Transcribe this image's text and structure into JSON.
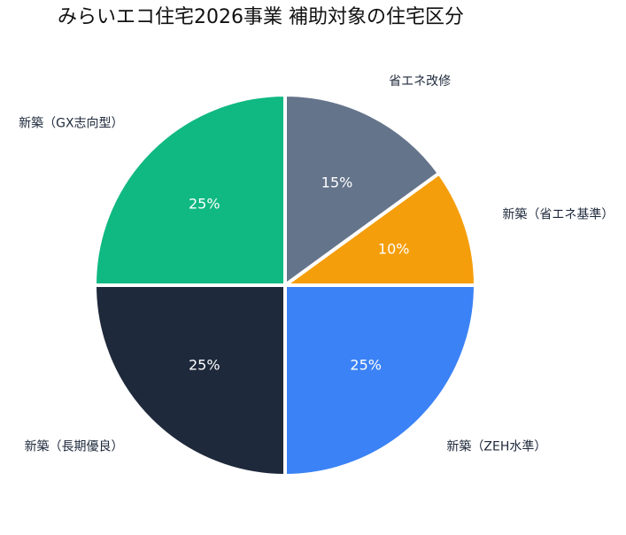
{
  "chart_data": {
    "type": "pie",
    "title": "みらいエコ住宅2026事業 補助対象の住宅区分",
    "categories": [
      "省エネ改修",
      "新築（省エネ基準）",
      "新築（ZEH水準）",
      "新築（長期優良）",
      "新築（GX志向型）"
    ],
    "values": [
      15,
      10,
      25,
      25,
      25
    ],
    "value_labels": [
      "15%",
      "10%",
      "25%",
      "25%",
      "25%"
    ],
    "colors": [
      "#64748b",
      "#f59e0b",
      "#3b82f6",
      "#1e293b",
      "#10b981"
    ]
  }
}
